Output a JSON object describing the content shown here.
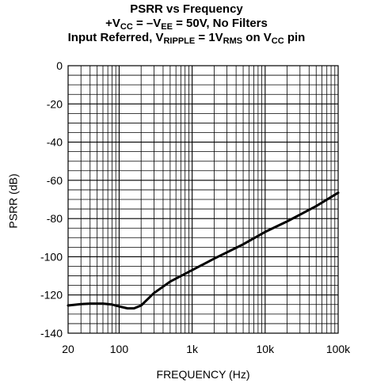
{
  "chart_data": {
    "type": "line",
    "title": {
      "line1": "PSRR vs Frequency",
      "line2_prefix": "+V",
      "line2_sub1": "CC",
      "line2_mid": " = –V",
      "line2_sub2": "EE",
      "line2_suffix": " = 50V, No Filters",
      "line3_prefix": "Input Referred, V",
      "line3_sub1": "RIPPLE",
      "line3_mid": " = 1V",
      "line3_sub2": "RMS",
      "line3_mid2": " on V",
      "line3_sub3": "CC",
      "line3_suffix": " pin"
    },
    "xlabel": "FREQUENCY (Hz)",
    "ylabel": "PSRR (dB)",
    "x_scale": "log",
    "xlim": [
      20,
      100000
    ],
    "ylim": [
      -140,
      0
    ],
    "grid": true,
    "x_ticks": [
      {
        "value": 20,
        "label": "20"
      },
      {
        "value": 100,
        "label": "100"
      },
      {
        "value": 1000,
        "label": "1k"
      },
      {
        "value": 10000,
        "label": "10k"
      },
      {
        "value": 100000,
        "label": "100k"
      }
    ],
    "y_ticks": [
      0,
      -20,
      -40,
      -60,
      -80,
      -100,
      -120,
      -140
    ],
    "series": [
      {
        "color": "#000000",
        "x": [
          20,
          30,
          40,
          60,
          80,
          100,
          130,
          160,
          200,
          300,
          500,
          1000,
          2000,
          5000,
          10000,
          20000,
          50000,
          100000
        ],
        "y": [
          -125.5,
          -124.8,
          -124.5,
          -124.5,
          -125.0,
          -126.0,
          -127.0,
          -127.0,
          -125.5,
          -119.0,
          -113.0,
          -107.0,
          -101.0,
          -93.5,
          -87.0,
          -81.5,
          -73.5,
          -66.5
        ]
      }
    ]
  }
}
